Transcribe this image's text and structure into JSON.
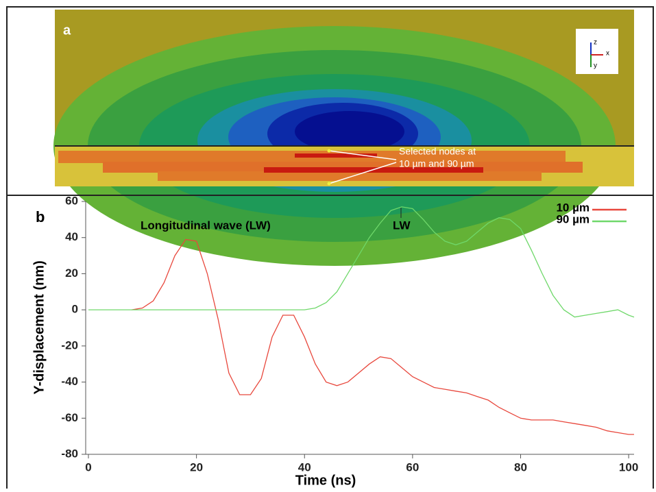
{
  "panel_a": {
    "label": "a",
    "annotation": [
      "Selected nodes at",
      "10 µm and 90 µm"
    ],
    "axes": [
      "z",
      "x",
      "y"
    ]
  },
  "chart_data": {
    "type": "line",
    "label": "b",
    "x_label": "Time (ns)",
    "y_label": "Y-displacement (nm)",
    "annotations": [
      "Longitudinal wave (LW)",
      "LW"
    ],
    "x": [
      0,
      2,
      4,
      6,
      8,
      10,
      12,
      14,
      16,
      18,
      20,
      22,
      24,
      26,
      28,
      30,
      32,
      34,
      36,
      38,
      40,
      42,
      44,
      46,
      48,
      50,
      52,
      54,
      56,
      58,
      60,
      62,
      64,
      66,
      68,
      70,
      72,
      74,
      76,
      78,
      80,
      82,
      84,
      86,
      88,
      90,
      92,
      94,
      96,
      98,
      100,
      101
    ],
    "series": [
      {
        "name": "10 µm",
        "color": "#e8473c",
        "values": [
          null,
          null,
          null,
          null,
          0,
          1,
          5,
          15,
          30,
          39,
          38,
          20,
          -5,
          -35,
          -47,
          -47,
          -38,
          -15,
          -3,
          -3,
          -15,
          -30,
          -40,
          -42,
          -40,
          -35,
          -30,
          -26,
          -27,
          -32,
          -37,
          -40,
          -43,
          -44,
          -45,
          -46,
          -48,
          -50,
          -54,
          -57,
          -60,
          -61,
          -61,
          -61,
          -62,
          -63,
          -64,
          -65,
          -67,
          -68,
          -69,
          -69
        ]
      },
      {
        "name": "90 µm",
        "color": "#6fd86a",
        "values": [
          0,
          0,
          0,
          0,
          0,
          0,
          0,
          0,
          0,
          0,
          0,
          0,
          0,
          0,
          0,
          0,
          0,
          0,
          0,
          0,
          0,
          1,
          4,
          10,
          20,
          30,
          40,
          48,
          55,
          57,
          56,
          50,
          43,
          38,
          36,
          38,
          43,
          48,
          51,
          50,
          45,
          33,
          20,
          8,
          0,
          -4,
          -3,
          -2,
          -1,
          0,
          -3,
          -4
        ]
      }
    ],
    "xlim": [
      0,
      101
    ],
    "ylim": [
      -80,
      60
    ],
    "xticks": [
      0,
      20,
      40,
      60,
      80,
      100
    ],
    "yticks": [
      -80,
      -60,
      -40,
      -20,
      0,
      20,
      40,
      60
    ],
    "legend": "upper right"
  }
}
